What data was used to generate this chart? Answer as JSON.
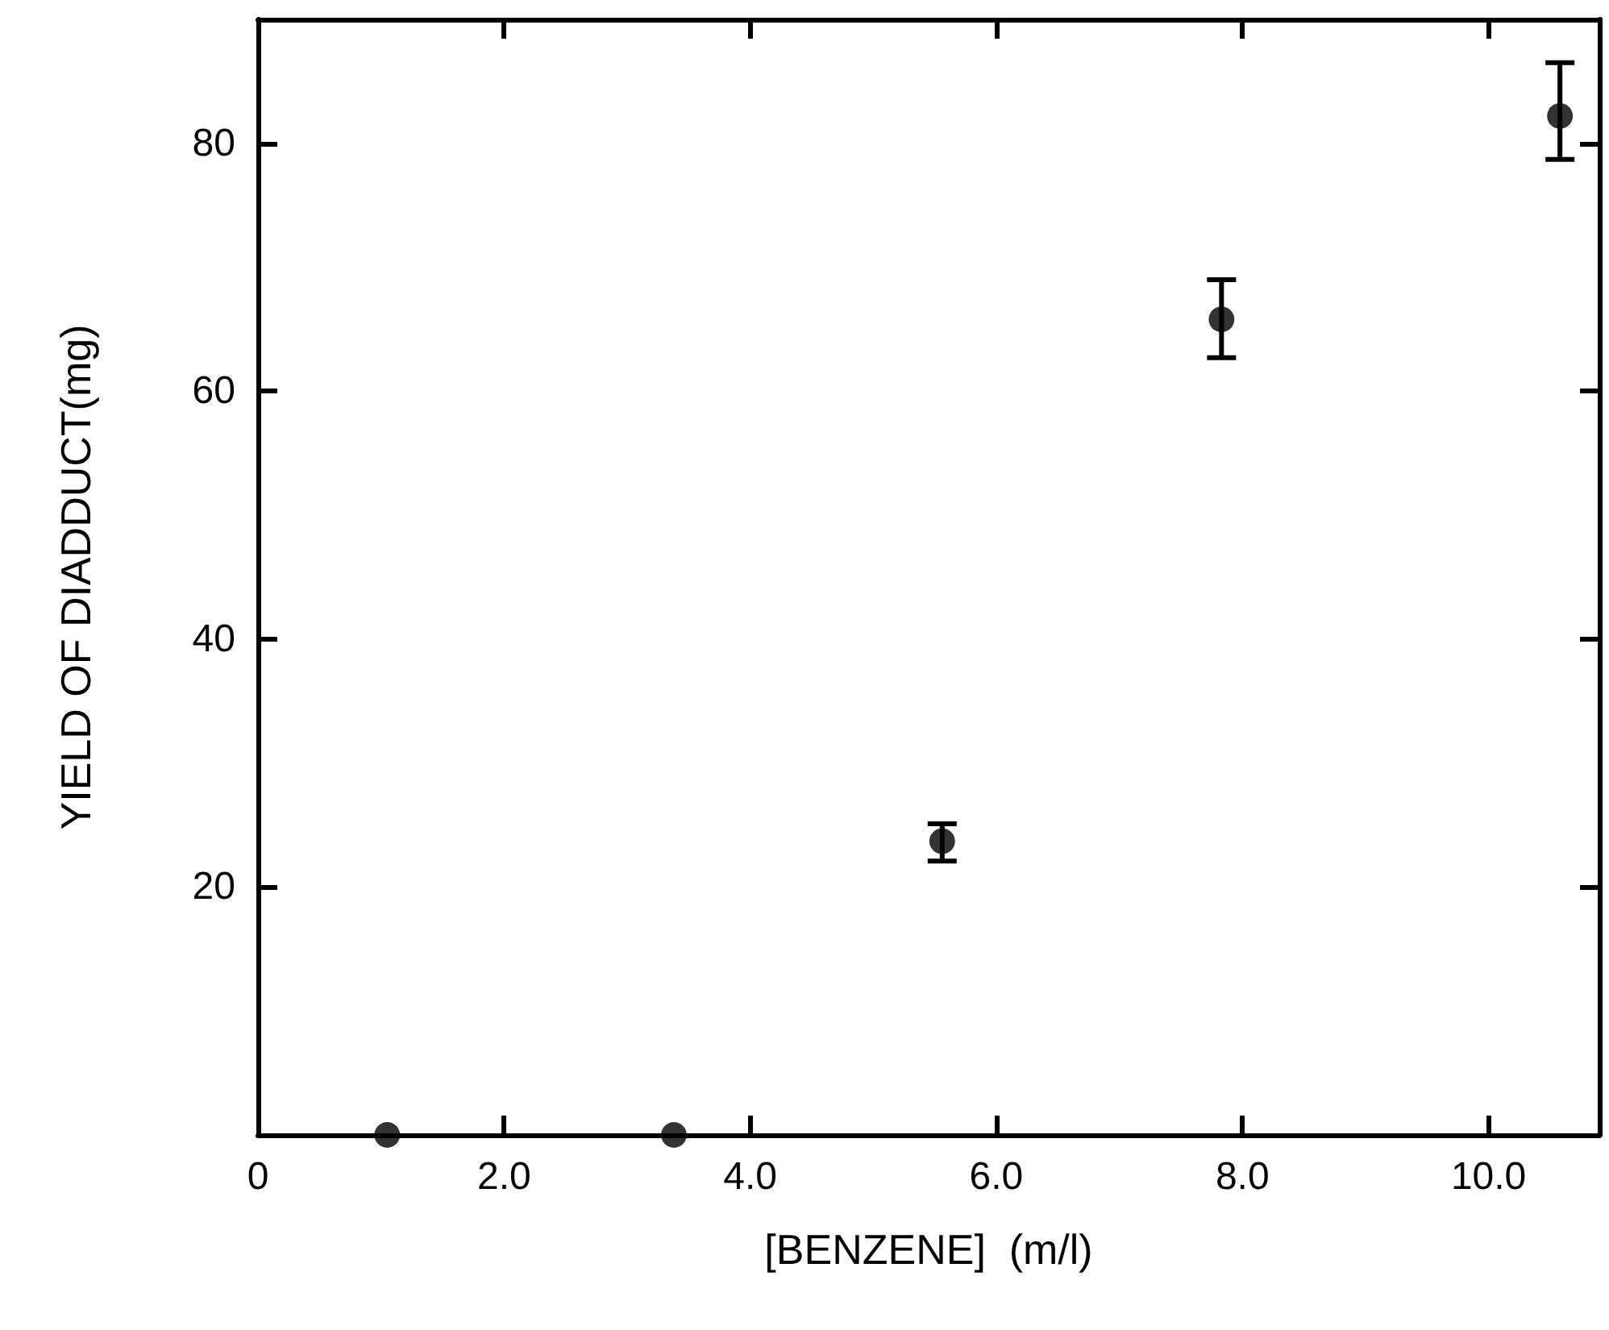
{
  "chart_data": {
    "type": "scatter",
    "xlabel": "[BENZENE]  (m/l)",
    "ylabel": "YIELD OF DIADDUCT(mg)",
    "x": [
      1.05,
      3.38,
      5.56,
      7.83,
      10.58
    ],
    "values": [
      0,
      0,
      23.7,
      65.8,
      82.2
    ],
    "errors": [
      null,
      null,
      [
        22.1,
        25.1
      ],
      [
        62.7,
        69.0
      ],
      [
        78.7,
        86.5
      ]
    ],
    "color": "#000000",
    "marker": "circle",
    "xlim": [
      0,
      10.9
    ],
    "ylim": [
      0,
      90
    ],
    "xticks": [
      0,
      {
        "value": 2,
        "label": "2.0"
      },
      {
        "value": 4,
        "label": "4.0"
      },
      {
        "value": 6,
        "label": "6.0"
      },
      {
        "value": 8,
        "label": "8.0"
      },
      {
        "value": 10,
        "label": "10.0"
      }
    ],
    "yticks": [
      20,
      40,
      60,
      80
    ],
    "grid": false
  }
}
